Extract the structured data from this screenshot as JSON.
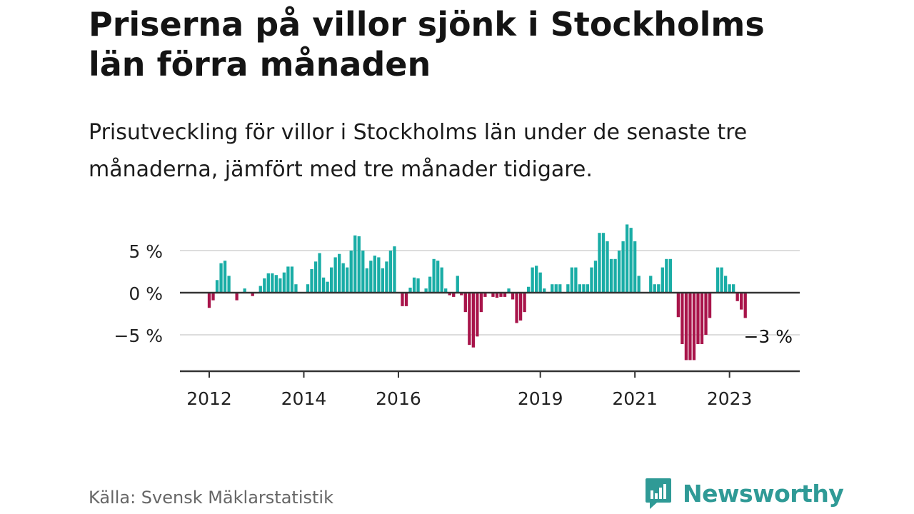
{
  "title": "Priserna på villor sjönk i Stockholms län förra månaden",
  "subtitle": "Prisutveckling för villor i Stockholms län under de senaste tre månaderna, jämfört med tre månader tidigare.",
  "source": "Källa: Svensk Mäklarstatistik",
  "brand": {
    "name": "Newsworthy",
    "icon": "newsworthy-logo-icon"
  },
  "colors": {
    "positive": "#1aada6",
    "negative": "#a8144a",
    "grid": "#dddddd",
    "axis": "#333333"
  },
  "chart_data": {
    "type": "bar",
    "title": "Priserna på villor sjönk i Stockholms län förra månaden",
    "xlabel": "",
    "ylabel": "",
    "start": "2012-01",
    "ylim": [
      -9,
      8
    ],
    "y_ticks": [
      {
        "value": 5,
        "label": "5 %"
      },
      {
        "value": 0,
        "label": "0 %"
      },
      {
        "value": -5,
        "label": "−5 %"
      }
    ],
    "x_ticks": [
      {
        "index": 0,
        "label": "2012"
      },
      {
        "index": 24,
        "label": "2014"
      },
      {
        "index": 48,
        "label": "2016"
      },
      {
        "index": 84,
        "label": "2019"
      },
      {
        "index": 108,
        "label": "2021"
      },
      {
        "index": 132,
        "label": "2023"
      }
    ],
    "annotation": {
      "index": 143,
      "label": "−3 %"
    },
    "values": [
      -1.8,
      -0.9,
      1.5,
      3.5,
      3.8,
      2.0,
      0,
      -0.9,
      0,
      0.5,
      0,
      -0.4,
      0,
      0.8,
      1.7,
      2.3,
      2.3,
      2.1,
      1.7,
      2.4,
      3.1,
      3.1,
      1.0,
      0,
      0,
      1.0,
      2.8,
      3.7,
      4.7,
      1.8,
      1.3,
      3.0,
      4.2,
      4.6,
      3.5,
      3.0,
      5.0,
      6.8,
      6.7,
      5.0,
      2.9,
      3.8,
      4.4,
      4.2,
      2.9,
      3.7,
      5.0,
      5.5,
      0,
      -1.6,
      -1.6,
      0.6,
      1.8,
      1.7,
      0,
      0.5,
      1.9,
      4.0,
      3.8,
      3.0,
      0.5,
      -0.3,
      -0.5,
      2.0,
      -0.3,
      -2.3,
      -6.2,
      -6.5,
      -5.2,
      -2.3,
      -0.5,
      0,
      -0.5,
      -0.6,
      -0.5,
      -0.5,
      0.5,
      -0.8,
      -3.6,
      -3.3,
      -2.3,
      0.7,
      3.0,
      3.2,
      2.4,
      0.5,
      0,
      1.0,
      1.0,
      1.0,
      0,
      1.0,
      3.0,
      3.0,
      1.0,
      1.0,
      1.0,
      3.0,
      3.8,
      7.1,
      7.1,
      6.1,
      4.0,
      4.0,
      5.0,
      6.1,
      8.1,
      7.7,
      6.1,
      2.0,
      0,
      0,
      2.0,
      1.0,
      1.0,
      3.0,
      4.0,
      4.0,
      0,
      -2.9,
      -6.1,
      -8.0,
      -8.0,
      -8.0,
      -6.1,
      -6.1,
      -5.0,
      -3.0,
      0,
      3.0,
      3.0,
      2.0,
      1.0,
      1.0,
      -1.0,
      -2.0,
      -3.0
    ]
  }
}
